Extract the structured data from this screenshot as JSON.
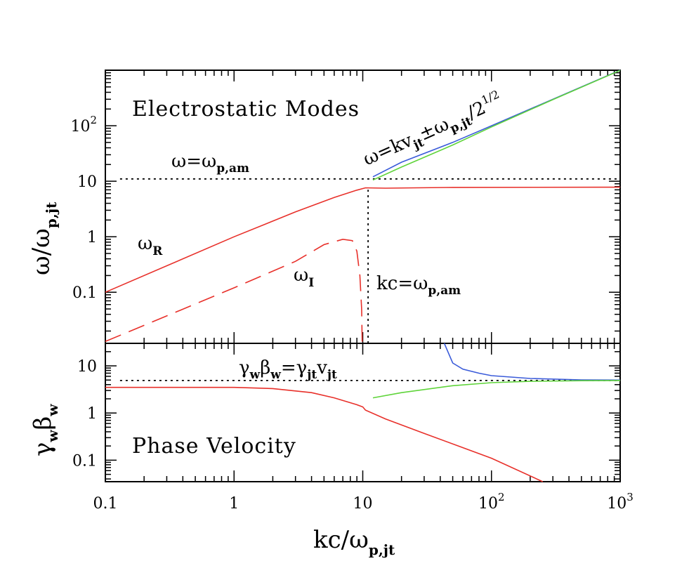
{
  "chart_data": [
    {
      "type": "line",
      "title": "Electrostatic Modes",
      "xscale": "log",
      "yscale": "log",
      "xlim": [
        0.1,
        1000
      ],
      "ylim": [
        0.012,
        1000
      ],
      "ylabel": {
        "main": "ω/ω",
        "sub": "p,jt"
      },
      "yticks": [
        {
          "value": 0.1,
          "label": "0.1"
        },
        {
          "value": 1,
          "label": "1"
        },
        {
          "value": 10,
          "label": "10"
        },
        {
          "value": 100,
          "label": "10",
          "sup": "2"
        }
      ],
      "annotations": {
        "plasma_line": {
          "main": "ω=ω",
          "sub": "p,am"
        },
        "omega_r": {
          "main": "ω",
          "sub": "R"
        },
        "omega_i": {
          "main": "ω",
          "sub": "I"
        },
        "kc_line": {
          "main": "kc=ω",
          "sub": "p,am"
        },
        "beam": {
          "a": "ω=kv",
          "b": "jt",
          "c": "±ω",
          "d": "p,jt",
          "e": "/2",
          "f": "1/2"
        }
      },
      "series": [
        {
          "name": "omega_p_am",
          "style": "dotted",
          "color": "#000000",
          "x": [
            0.13,
            1000
          ],
          "y": [
            11,
            11
          ]
        },
        {
          "name": "kc_omega_p_am",
          "style": "dotted",
          "color": "#000000",
          "x": [
            11,
            11
          ],
          "y": [
            0.012,
            7
          ]
        },
        {
          "name": "omega_R",
          "style": "solid",
          "color": "#e8302a",
          "x": [
            0.1,
            1,
            3,
            6,
            9,
            10.5,
            15,
            50,
            1000
          ],
          "y": [
            0.1,
            1,
            2.8,
            5.1,
            6.9,
            7.6,
            7.5,
            7.75,
            7.8
          ]
        },
        {
          "name": "omega_I",
          "style": "dashed",
          "color": "#e8302a",
          "x": [
            0.1,
            1,
            3,
            5,
            7,
            8.3,
            9,
            9.5,
            9.8,
            9.9
          ],
          "y": [
            0.013,
            0.12,
            0.36,
            0.72,
            0.9,
            0.85,
            0.55,
            0.2,
            0.05,
            0.012
          ]
        },
        {
          "name": "beam_plus",
          "style": "solid",
          "color": "#3a5bd9",
          "x": [
            12,
            20,
            50,
            100,
            300,
            1000
          ],
          "y": [
            12,
            22,
            50,
            100,
            300,
            1000
          ]
        },
        {
          "name": "beam_minus",
          "style": "solid",
          "color": "#5fd43a",
          "x": [
            12,
            20,
            50,
            100,
            300,
            1000
          ],
          "y": [
            10.5,
            18,
            45,
            95,
            295,
            995
          ]
        }
      ]
    },
    {
      "type": "line",
      "title": "Phase Velocity",
      "xscale": "log",
      "yscale": "log",
      "xlim": [
        0.1,
        1000
      ],
      "ylim": [
        0.035,
        30
      ],
      "xlabel": {
        "main": "kc/ω",
        "sub": "p,jt"
      },
      "ylabel": {
        "main": "γ",
        "sub1": "w",
        "main2": "β",
        "sub2": "w"
      },
      "xticks": [
        {
          "value": 0.1,
          "label": "0.1"
        },
        {
          "value": 1,
          "label": "1"
        },
        {
          "value": 10,
          "label": "10"
        },
        {
          "value": 100,
          "label": "10",
          "sup": "2"
        },
        {
          "value": 1000,
          "label": "10",
          "sup": "3"
        }
      ],
      "yticks": [
        {
          "value": 0.1,
          "label": "0.1"
        },
        {
          "value": 1,
          "label": "1"
        },
        {
          "value": 10,
          "label": "10"
        }
      ],
      "annotations": {
        "equality": {
          "a": "γ",
          "b": "w",
          "c": "β",
          "d": "w",
          "e": "=γ",
          "f": "jt",
          "g": "v",
          "h": "jt"
        }
      },
      "series": [
        {
          "name": "gamma_jt_v_jt",
          "style": "dotted",
          "color": "#000000",
          "x": [
            0.13,
            1000
          ],
          "y": [
            4.9,
            4.9
          ]
        },
        {
          "name": "omega_R_phase",
          "style": "solid",
          "color": "#e8302a",
          "x": [
            0.1,
            1,
            2,
            4,
            6,
            9,
            10,
            10.5,
            15,
            30,
            100,
            250
          ],
          "y": [
            3.5,
            3.5,
            3.3,
            2.7,
            2.1,
            1.5,
            1.35,
            1.15,
            0.75,
            0.37,
            0.11,
            0.035
          ]
        },
        {
          "name": "beam_plus_phase",
          "style": "solid",
          "color": "#3a5bd9",
          "x": [
            43,
            50,
            60,
            80,
            100,
            200,
            500,
            1000
          ],
          "y": [
            30,
            11.5,
            8.5,
            7,
            6.2,
            5.4,
            5.05,
            5
          ]
        },
        {
          "name": "beam_minus_phase",
          "style": "solid",
          "color": "#5fd43a",
          "x": [
            12,
            20,
            50,
            100,
            200,
            500,
            1000
          ],
          "y": [
            2.1,
            2.7,
            3.8,
            4.4,
            4.7,
            4.85,
            4.9
          ]
        }
      ]
    }
  ]
}
